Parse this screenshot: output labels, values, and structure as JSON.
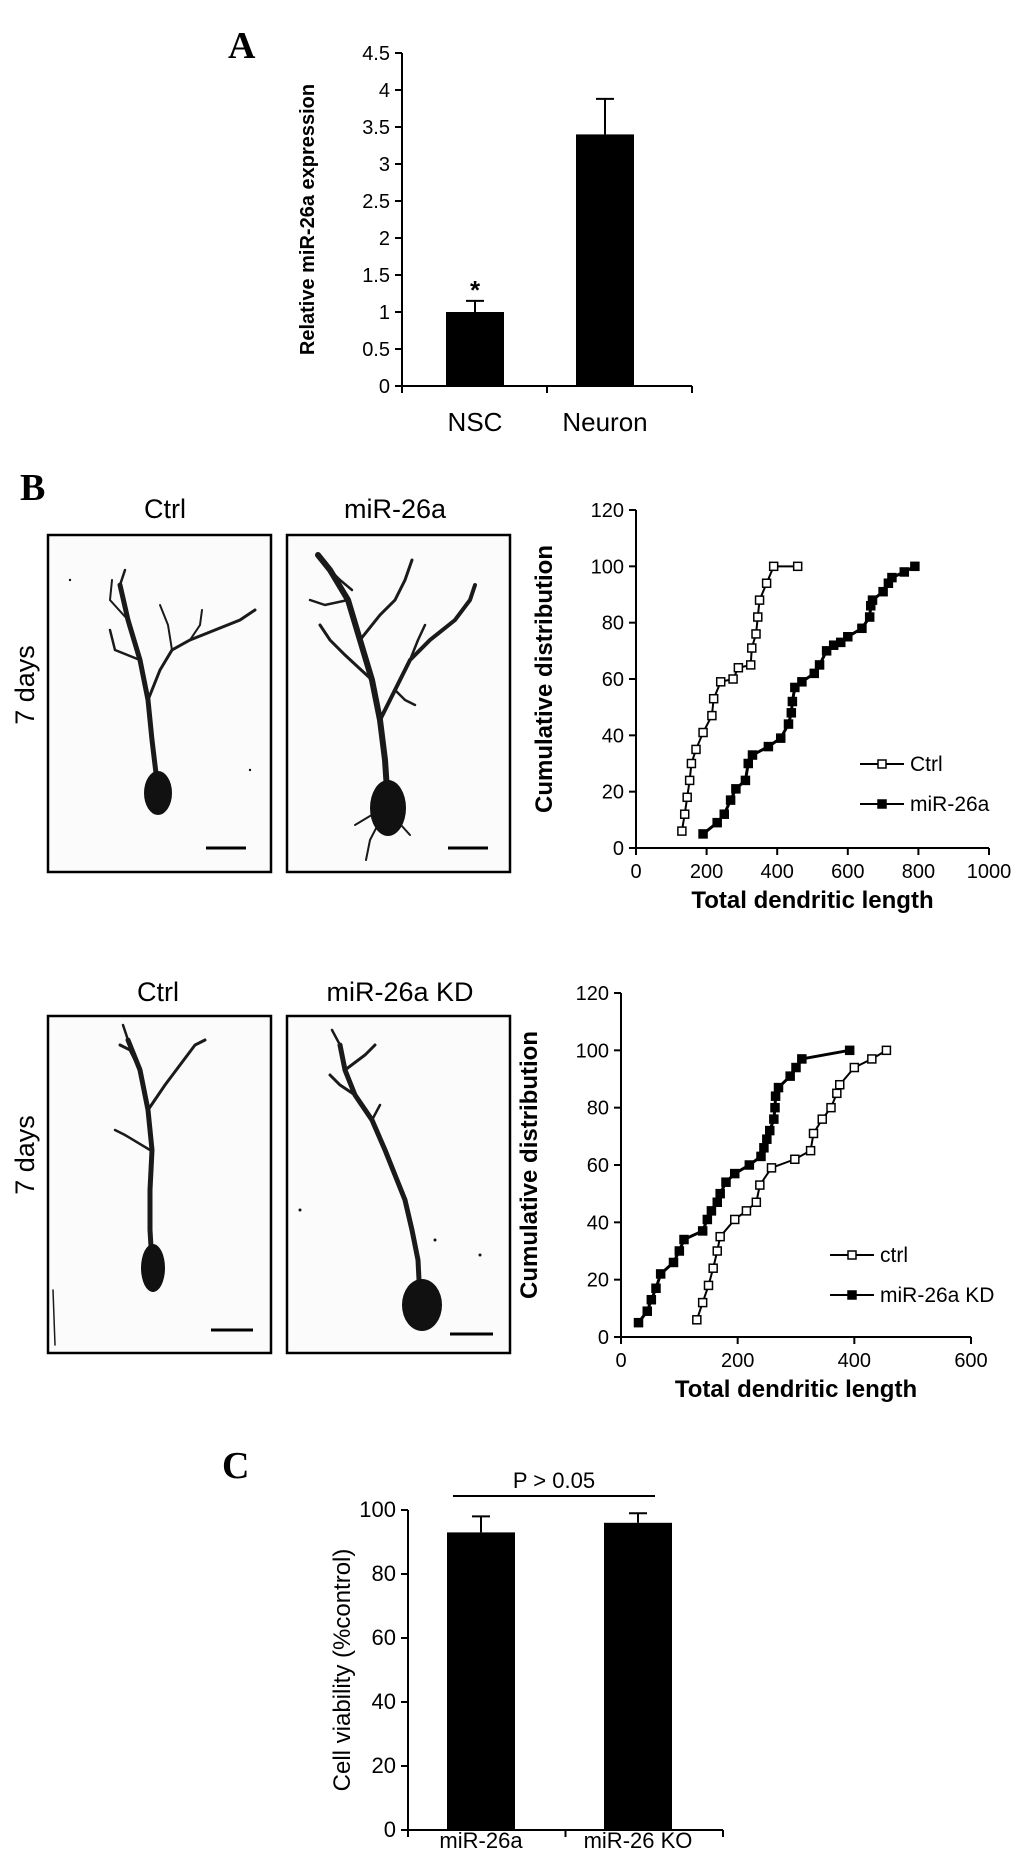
{
  "panels": {
    "A": {
      "letter": "A",
      "chart_data": {
        "type": "bar",
        "categories": [
          "NSC",
          "Neuron"
        ],
        "values": [
          1.0,
          3.4
        ],
        "errors": [
          0.15,
          0.48
        ],
        "ylabel": "Relative miR-26a expression",
        "ylim": [
          0,
          4.5
        ],
        "yticks": [
          "0",
          "0.5",
          "1",
          "1.5",
          "2",
          "2.5",
          "3",
          "3.5",
          "4",
          "4.5"
        ],
        "annotation": "*",
        "bar_color": "#000000"
      }
    },
    "B": {
      "letter": "B",
      "top": {
        "row_label": "7 days",
        "image_labels": [
          "Ctrl",
          "miR-26a"
        ],
        "chart_data": {
          "type": "line",
          "xlabel": "Total dendritic length",
          "ylabel": "Cumulative distribution",
          "xlim": [
            0,
            1000
          ],
          "ylim": [
            0,
            120
          ],
          "xticks": [
            "0",
            "200",
            "400",
            "600",
            "800",
            "1000"
          ],
          "yticks": [
            "0",
            "20",
            "40",
            "60",
            "80",
            "100",
            "120"
          ],
          "legend_position": "right",
          "series": [
            {
              "name": "Ctrl",
              "marker": "open-square",
              "points": [
                [
                  130,
                  6
                ],
                [
                  138,
                  12
                ],
                [
                  145,
                  18
                ],
                [
                  152,
                  24
                ],
                [
                  157,
                  30
                ],
                [
                  170,
                  35
                ],
                [
                  190,
                  41
                ],
                [
                  215,
                  47
                ],
                [
                  220,
                  53
                ],
                [
                  240,
                  59
                ],
                [
                  275,
                  60
                ],
                [
                  290,
                  64
                ],
                [
                  325,
                  65
                ],
                [
                  328,
                  71
                ],
                [
                  340,
                  76
                ],
                [
                  345,
                  82
                ],
                [
                  350,
                  88
                ],
                [
                  370,
                  94
                ],
                [
                  390,
                  100
                ],
                [
                  458,
                  100
                ]
              ]
            },
            {
              "name": "miR-26a",
              "marker": "filled-square",
              "points": [
                [
                  190,
                  5
                ],
                [
                  230,
                  9
                ],
                [
                  250,
                  12
                ],
                [
                  268,
                  17
                ],
                [
                  283,
                  21
                ],
                [
                  310,
                  24
                ],
                [
                  318,
                  30
                ],
                [
                  330,
                  33
                ],
                [
                  375,
                  36
                ],
                [
                  410,
                  39
                ],
                [
                  432,
                  44
                ],
                [
                  440,
                  48
                ],
                [
                  443,
                  52
                ],
                [
                  450,
                  57
                ],
                [
                  470,
                  59
                ],
                [
                  505,
                  62
                ],
                [
                  520,
                  65
                ],
                [
                  540,
                  70
                ],
                [
                  560,
                  72
                ],
                [
                  580,
                  73
                ],
                [
                  600,
                  75
                ],
                [
                  640,
                  78
                ],
                [
                  662,
                  82
                ],
                [
                  665,
                  86
                ],
                [
                  670,
                  88
                ],
                [
                  700,
                  91
                ],
                [
                  715,
                  94
                ],
                [
                  725,
                  96
                ],
                [
                  760,
                  98
                ],
                [
                  790,
                  100
                ]
              ]
            }
          ]
        }
      },
      "bottom": {
        "row_label": "7 days",
        "image_labels": [
          "Ctrl",
          "miR-26a KD"
        ],
        "chart_data": {
          "type": "line",
          "xlabel": "Total dendritic length",
          "ylabel": "Cumulative distribution",
          "xlim": [
            0,
            600
          ],
          "ylim": [
            0,
            120
          ],
          "xticks": [
            "0",
            "200",
            "400",
            "600"
          ],
          "yticks": [
            "0",
            "20",
            "40",
            "60",
            "80",
            "100",
            "120"
          ],
          "legend_position": "right",
          "series": [
            {
              "name": "ctrl",
              "marker": "open-square",
              "points": [
                [
                  130,
                  6
                ],
                [
                  140,
                  12
                ],
                [
                  150,
                  18
                ],
                [
                  158,
                  24
                ],
                [
                  165,
                  30
                ],
                [
                  170,
                  35
                ],
                [
                  195,
                  41
                ],
                [
                  215,
                  44
                ],
                [
                  232,
                  47
                ],
                [
                  238,
                  53
                ],
                [
                  258,
                  59
                ],
                [
                  298,
                  62
                ],
                [
                  325,
                  65
                ],
                [
                  330,
                  71
                ],
                [
                  345,
                  76
                ],
                [
                  360,
                  80
                ],
                [
                  370,
                  85
                ],
                [
                  375,
                  88
                ],
                [
                  400,
                  94
                ],
                [
                  430,
                  97
                ],
                [
                  455,
                  100
                ]
              ]
            },
            {
              "name": "miR-26a KD",
              "marker": "filled-square",
              "points": [
                [
                  30,
                  5
                ],
                [
                  45,
                  9
                ],
                [
                  52,
                  13
                ],
                [
                  60,
                  17
                ],
                [
                  68,
                  22
                ],
                [
                  90,
                  26
                ],
                [
                  100,
                  30
                ],
                [
                  108,
                  34
                ],
                [
                  140,
                  37
                ],
                [
                  148,
                  41
                ],
                [
                  155,
                  44
                ],
                [
                  165,
                  47
                ],
                [
                  170,
                  50
                ],
                [
                  180,
                  54
                ],
                [
                  195,
                  57
                ],
                [
                  220,
                  60
                ],
                [
                  240,
                  63
                ],
                [
                  245,
                  66
                ],
                [
                  250,
                  69
                ],
                [
                  255,
                  72
                ],
                [
                  262,
                  76
                ],
                [
                  264,
                  80
                ],
                [
                  265,
                  84
                ],
                [
                  270,
                  87
                ],
                [
                  290,
                  91
                ],
                [
                  300,
                  94
                ],
                [
                  310,
                  97
                ],
                [
                  392,
                  100
                ]
              ]
            }
          ]
        }
      }
    },
    "C": {
      "letter": "C",
      "chart_data": {
        "type": "bar",
        "categories": [
          "miR-26a",
          "miR-26 KO"
        ],
        "values": [
          93,
          96
        ],
        "errors": [
          5,
          3
        ],
        "ylabel": "Cell viability (%control)",
        "ylim": [
          0,
          100
        ],
        "yticks": [
          "0",
          "20",
          "40",
          "60",
          "80",
          "100"
        ],
        "annotation": "P > 0.05",
        "bar_color": "#000000"
      }
    }
  }
}
